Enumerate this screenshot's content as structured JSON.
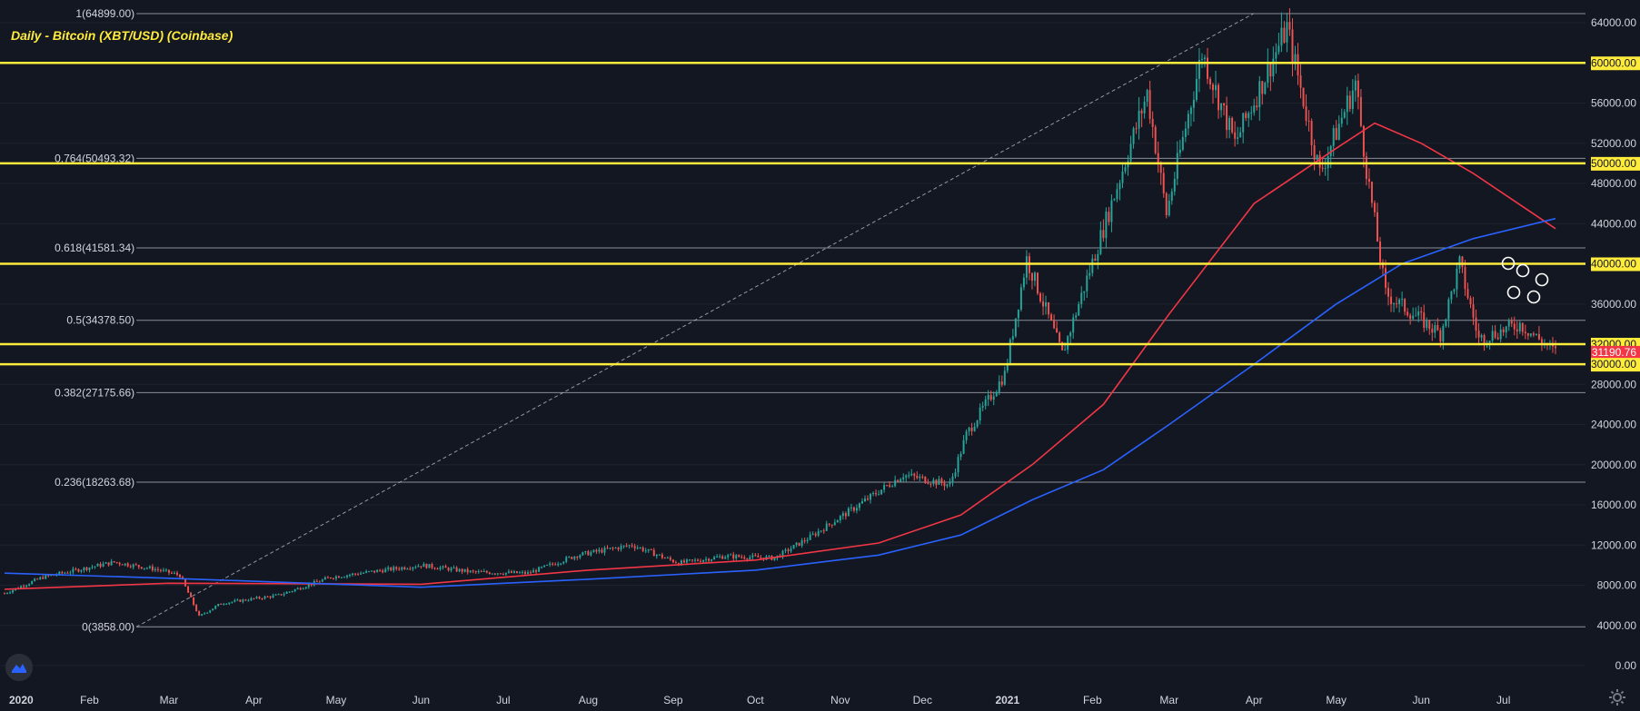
{
  "title": "Daily - Bitcoin (XBT/USD) (Coinbase)",
  "colors": {
    "background": "#131722",
    "up": "#26a69a",
    "down": "#ef5350",
    "ma_red": "#f23645",
    "ma_blue": "#2962ff",
    "key_level": "#ffeb3b",
    "fib_line": "#b2b5be",
    "text": "#d1d4dc",
    "last_price_bg": "#f23645"
  },
  "price_axis": {
    "min": 0,
    "max": 64000,
    "step": 4000,
    "labels": [
      "64000.00",
      "60000.00",
      "56000.00",
      "52000.00",
      "50000.00",
      "48000.00",
      "44000.00",
      "40000.00",
      "36000.00",
      "32000.00",
      "31190.76",
      "30000.00",
      "28000.00",
      "24000.00",
      "20000.00",
      "16000.00",
      "12000.00",
      "8000.00",
      "4000.00",
      "0.00"
    ]
  },
  "time_axis": {
    "labels": [
      "2020",
      "Feb",
      "Mar",
      "Apr",
      "May",
      "Jun",
      "Jul",
      "Aug",
      "Sep",
      "Oct",
      "Nov",
      "Dec",
      "2021",
      "Feb",
      "Mar",
      "Apr",
      "May",
      "Jun",
      "Jul"
    ]
  },
  "fib_levels": [
    {
      "label": "1(64899.00)",
      "price": 64899
    },
    {
      "label": "0.764(50493.32)",
      "price": 50493.32
    },
    {
      "label": "0.618(41581.34)",
      "price": 41581.34
    },
    {
      "label": "0.5(34378.50)",
      "price": 34378.5
    },
    {
      "label": "0.382(27175.66)",
      "price": 27175.66
    },
    {
      "label": "0.236(18263.68)",
      "price": 18263.68
    },
    {
      "label": "0(3858.00)",
      "price": 3858
    }
  ],
  "key_levels": [
    {
      "label": "60000.00",
      "price": 60000
    },
    {
      "label": "50000.00",
      "price": 50000
    },
    {
      "label": "40000.00",
      "price": 40000
    },
    {
      "label": "32000.00",
      "price": 32000
    },
    {
      "label": "30000.00",
      "price": 30000
    }
  ],
  "last_price": {
    "label": "31190.76",
    "price": 31190.76
  },
  "chart_data": {
    "type": "candlestick",
    "title": "Daily - Bitcoin (XBT/USD) (Coinbase)",
    "ylim": [
      0,
      64000
    ],
    "x_ticks": [
      "2020",
      "Feb",
      "Mar",
      "Apr",
      "May",
      "Jun",
      "Jul",
      "Aug",
      "Sep",
      "Oct",
      "Nov",
      "Dec",
      "2021",
      "Feb",
      "Mar",
      "Apr",
      "May",
      "Jun",
      "Jul"
    ],
    "close_anchors": [
      [
        "2020-01-01",
        7200
      ],
      [
        "2020-01-15",
        8800
      ],
      [
        "2020-02-10",
        10300
      ],
      [
        "2020-02-25",
        9600
      ],
      [
        "2020-03-05",
        9000
      ],
      [
        "2020-03-12",
        4900
      ],
      [
        "2020-03-20",
        6200
      ],
      [
        "2020-04-10",
        7000
      ],
      [
        "2020-04-29",
        8800
      ],
      [
        "2020-05-10",
        9200
      ],
      [
        "2020-06-01",
        10000
      ],
      [
        "2020-06-20",
        9300
      ],
      [
        "2020-07-10",
        9200
      ],
      [
        "2020-07-28",
        11000
      ],
      [
        "2020-08-17",
        12000
      ],
      [
        "2020-09-03",
        10200
      ],
      [
        "2020-09-20",
        10900
      ],
      [
        "2020-10-08",
        10700
      ],
      [
        "2020-10-21",
        12800
      ],
      [
        "2020-11-05",
        15500
      ],
      [
        "2020-11-24",
        19000
      ],
      [
        "2020-12-11",
        18000
      ],
      [
        "2020-12-17",
        23000
      ],
      [
        "2020-12-31",
        29000
      ],
      [
        "2021-01-08",
        40500
      ],
      [
        "2021-01-21",
        31000
      ],
      [
        "2021-02-08",
        46000
      ],
      [
        "2021-02-21",
        57000
      ],
      [
        "2021-02-28",
        45000
      ],
      [
        "2021-03-13",
        61000
      ],
      [
        "2021-03-25",
        52000
      ],
      [
        "2021-04-13",
        63500
      ],
      [
        "2021-04-25",
        49000
      ],
      [
        "2021-05-08",
        58000
      ],
      [
        "2021-05-12",
        49500
      ],
      [
        "2021-05-19",
        37000
      ],
      [
        "2021-06-08",
        33000
      ],
      [
        "2021-06-15",
        40000
      ],
      [
        "2021-06-22",
        32500
      ],
      [
        "2021-07-07",
        34000
      ],
      [
        "2021-07-20",
        31190.76
      ]
    ],
    "moving_averages": [
      {
        "color": "red",
        "points": [
          [
            "2020-01-01",
            7600
          ],
          [
            "2020-03-01",
            8200
          ],
          [
            "2020-06-01",
            8100
          ],
          [
            "2020-08-01",
            9500
          ],
          [
            "2020-10-01",
            10500
          ],
          [
            "2020-11-15",
            12200
          ],
          [
            "2020-12-15",
            15000
          ],
          [
            "2021-01-10",
            20000
          ],
          [
            "2021-02-05",
            26000
          ],
          [
            "2021-03-01",
            35000
          ],
          [
            "2021-04-01",
            46000
          ],
          [
            "2021-05-01",
            51500
          ],
          [
            "2021-05-15",
            54000
          ],
          [
            "2021-06-01",
            52000
          ],
          [
            "2021-06-20",
            49000
          ],
          [
            "2021-07-20",
            43500
          ]
        ]
      },
      {
        "color": "blue",
        "points": [
          [
            "2020-01-01",
            9200
          ],
          [
            "2020-03-01",
            8700
          ],
          [
            "2020-06-01",
            7800
          ],
          [
            "2020-08-01",
            8600
          ],
          [
            "2020-10-01",
            9500
          ],
          [
            "2020-11-15",
            11000
          ],
          [
            "2020-12-15",
            13000
          ],
          [
            "2021-01-10",
            16500
          ],
          [
            "2021-02-05",
            19500
          ],
          [
            "2021-03-01",
            24000
          ],
          [
            "2021-04-01",
            30000
          ],
          [
            "2021-05-01",
            36000
          ],
          [
            "2021-05-25",
            40000
          ],
          [
            "2021-06-20",
            42500
          ],
          [
            "2021-07-20",
            44500
          ]
        ]
      }
    ],
    "fib_anchor": {
      "low": [
        "2020-03-13",
        3858
      ],
      "high": [
        "2021-04-14",
        64899
      ]
    },
    "annotations": "white circles marking swing points near 32000-36000 in July 2021"
  }
}
